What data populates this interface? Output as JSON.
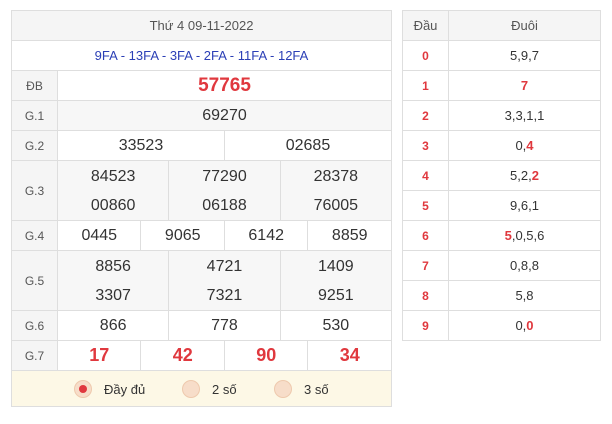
{
  "results": {
    "date_title": "Thứ 4 09-11-2022",
    "codes": "9FA - 13FA - 3FA - 2FA - 11FA - 12FA",
    "db": {
      "label": "ĐB",
      "value": "57765"
    },
    "g1": {
      "label": "G.1",
      "values": [
        "69270"
      ]
    },
    "g2": {
      "label": "G.2",
      "values": [
        "33523",
        "02685"
      ]
    },
    "g3": {
      "label": "G.3",
      "values": [
        "84523",
        "00860",
        "77290",
        "06188",
        "28378",
        "76005"
      ]
    },
    "g4": {
      "label": "G.4",
      "values": [
        "0445",
        "9065",
        "6142",
        "8859"
      ]
    },
    "g5": {
      "label": "G.5",
      "values": [
        "8856",
        "3307",
        "4721",
        "7321",
        "1409",
        "9251"
      ]
    },
    "g6": {
      "label": "G.6",
      "values": [
        "866",
        "778",
        "530"
      ]
    },
    "g7": {
      "label": "G.7",
      "values": [
        "17",
        "42",
        "90",
        "34"
      ]
    }
  },
  "options": {
    "full": "Đầy đủ",
    "two": "2 số",
    "three": "3 số",
    "selected": "full"
  },
  "loto": {
    "head_label": "Đầu",
    "tail_label": "Đuôi",
    "rows": [
      {
        "dau": "0",
        "parts": [
          {
            "t": "5,9,7"
          }
        ]
      },
      {
        "dau": "1",
        "parts": [
          {
            "t": "7",
            "hl": true
          }
        ]
      },
      {
        "dau": "2",
        "parts": [
          {
            "t": "3,3,1,1"
          }
        ]
      },
      {
        "dau": "3",
        "parts": [
          {
            "t": "0,"
          },
          {
            "t": "4",
            "hl": true
          }
        ]
      },
      {
        "dau": "4",
        "parts": [
          {
            "t": "5,2,"
          },
          {
            "t": "2",
            "hl": true
          }
        ]
      },
      {
        "dau": "5",
        "parts": [
          {
            "t": "9,6,1"
          }
        ]
      },
      {
        "dau": "6",
        "parts": [
          {
            "t": "5",
            "hl": true
          },
          {
            "t": ",0,5,6"
          }
        ]
      },
      {
        "dau": "7",
        "parts": [
          {
            "t": "0,8,8"
          }
        ]
      },
      {
        "dau": "8",
        "parts": [
          {
            "t": "5,8"
          }
        ]
      },
      {
        "dau": "9",
        "parts": [
          {
            "t": "0,"
          },
          {
            "t": "0",
            "hl": true
          }
        ]
      }
    ]
  },
  "colors": {
    "accent_red": "#e0383e",
    "code_blue": "#2b3fb6",
    "option_bg": "#fdf8e6"
  }
}
